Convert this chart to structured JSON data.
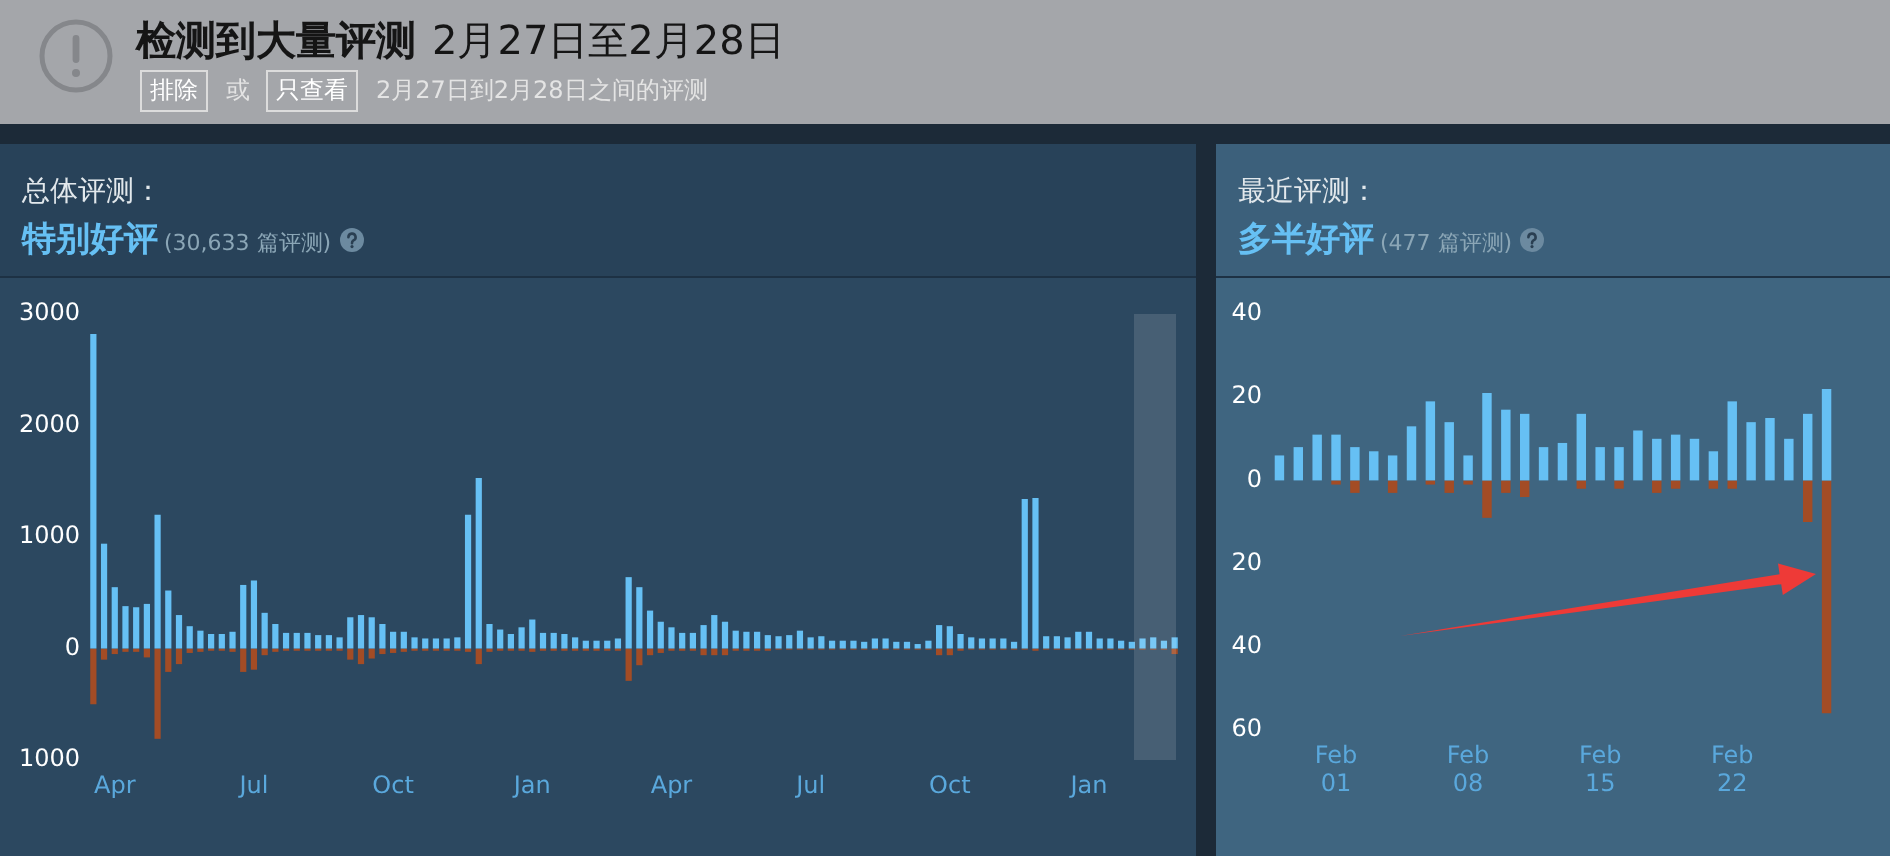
{
  "chart_data": [
    {
      "type": "other",
      "title": "检测到大量评测",
      "subtitle": "2月27日至2月28日",
      "annotations": [
        "排除",
        "或",
        "只查看",
        "2月27日到2月28日之间的评测"
      ]
    },
    {
      "type": "bar",
      "title": "总体评测：",
      "subtitle": "特别好评",
      "annotations": [
        "(30,633 篇评测)"
      ],
      "stacked": true,
      "categories": [
        null,
        null,
        "Apr",
        null,
        null,
        null,
        null,
        null,
        null,
        null,
        null,
        null,
        null,
        null,
        null,
        "Jul",
        null,
        null,
        null,
        null,
        null,
        null,
        null,
        null,
        null,
        null,
        null,
        null,
        "Oct",
        null,
        null,
        null,
        null,
        null,
        null,
        null,
        null,
        null,
        null,
        null,
        null,
        "Jan",
        null,
        null,
        null,
        null,
        null,
        null,
        null,
        null,
        null,
        null,
        null,
        null,
        "Apr",
        null,
        null,
        null,
        null,
        null,
        null,
        null,
        null,
        null,
        null,
        null,
        null,
        "Jul",
        null,
        null,
        null,
        null,
        null,
        null,
        null,
        null,
        null,
        null,
        null,
        null,
        "Oct",
        null,
        null,
        null,
        null,
        null,
        null,
        null,
        null,
        null,
        null,
        null,
        null,
        "Jan",
        null,
        null,
        null,
        null,
        null,
        null,
        null,
        null
      ],
      "series": [
        {
          "color": "#66c0f4",
          "values": [
            2820,
            940,
            550,
            380,
            370,
            400,
            1200,
            520,
            300,
            200,
            160,
            130,
            130,
            150,
            570,
            610,
            320,
            220,
            140,
            140,
            140,
            120,
            120,
            100,
            280,
            300,
            280,
            220,
            150,
            150,
            100,
            90,
            90,
            90,
            100,
            1200,
            1530,
            220,
            170,
            130,
            190,
            260,
            140,
            140,
            130,
            100,
            70,
            70,
            70,
            90,
            640,
            550,
            340,
            240,
            190,
            140,
            140,
            210,
            300,
            240,
            160,
            150,
            150,
            120,
            110,
            120,
            160,
            100,
            110,
            70,
            70,
            70,
            60,
            90,
            90,
            60,
            60,
            40,
            70,
            210,
            200,
            130,
            100,
            90,
            90,
            90,
            60,
            1340,
            1350,
            110,
            110,
            100,
            150,
            150,
            90,
            90,
            70,
            60,
            90,
            100,
            70,
            100
          ]
        },
        {
          "color": "#a34c25",
          "values": [
            -500,
            -100,
            -50,
            -30,
            -30,
            -80,
            -810,
            -210,
            -140,
            -40,
            -30,
            -20,
            -20,
            -30,
            -210,
            -190,
            -60,
            -30,
            -20,
            -20,
            -20,
            -20,
            -20,
            -20,
            -100,
            -140,
            -90,
            -50,
            -40,
            -30,
            -20,
            -20,
            -20,
            -20,
            -20,
            -30,
            -140,
            -30,
            -20,
            -20,
            -20,
            -30,
            -20,
            -20,
            -20,
            -20,
            -20,
            -20,
            -20,
            -20,
            -290,
            -150,
            -60,
            -40,
            -20,
            -20,
            -20,
            -60,
            -60,
            -60,
            -20,
            -20,
            -20,
            -20,
            -10,
            -10,
            -10,
            -10,
            -10,
            -10,
            -10,
            -10,
            -10,
            -10,
            -10,
            -10,
            -10,
            -10,
            -10,
            -60,
            -60,
            -20,
            -10,
            -10,
            -10,
            -10,
            -10,
            -10,
            -20,
            -10,
            -10,
            -10,
            -10,
            -10,
            -10,
            -10,
            -10,
            -10,
            -10,
            -10,
            -10,
            -50
          ]
        }
      ],
      "ylim": [
        -1000,
        3000
      ],
      "yticks": [
        {
          "value": -1000,
          "label": "1000"
        },
        0,
        1000,
        2000,
        3000
      ]
    },
    {
      "type": "bar",
      "title": "最近评测：",
      "subtitle": "多半好评",
      "annotations": [
        "(477 篇评测)"
      ],
      "stacked": true,
      "categories": [
        null,
        null,
        null,
        "Feb 01",
        null,
        null,
        null,
        null,
        null,
        null,
        "Feb 08",
        null,
        null,
        null,
        null,
        null,
        null,
        "Feb 15",
        null,
        null,
        null,
        null,
        null,
        null,
        "Feb 22",
        null,
        null,
        null,
        null,
        null
      ],
      "series": [
        {
          "color": "#66c0f4",
          "values": [
            6,
            8,
            11,
            11,
            8,
            7,
            6,
            13,
            19,
            14,
            6,
            21,
            17,
            16,
            8,
            9,
            16,
            8,
            8,
            12,
            10,
            11,
            10,
            7,
            19,
            14,
            15,
            10,
            16,
            22
          ]
        },
        {
          "color": "#a34c25",
          "values": [
            0,
            0,
            0,
            -1,
            -3,
            0,
            -3,
            0,
            -1,
            -3,
            -1,
            -9,
            -3,
            -4,
            0,
            0,
            -2,
            0,
            -2,
            0,
            -3,
            -2,
            0,
            -2,
            -2,
            0,
            0,
            0,
            -10,
            -56
          ]
        }
      ],
      "ylim": [
        -60,
        40
      ],
      "yticks": [
        {
          "value": -60,
          "label": "60"
        },
        {
          "value": -40,
          "label": "40"
        },
        {
          "value": -20,
          "label": "20"
        },
        0,
        20,
        40
      ]
    }
  ]
}
